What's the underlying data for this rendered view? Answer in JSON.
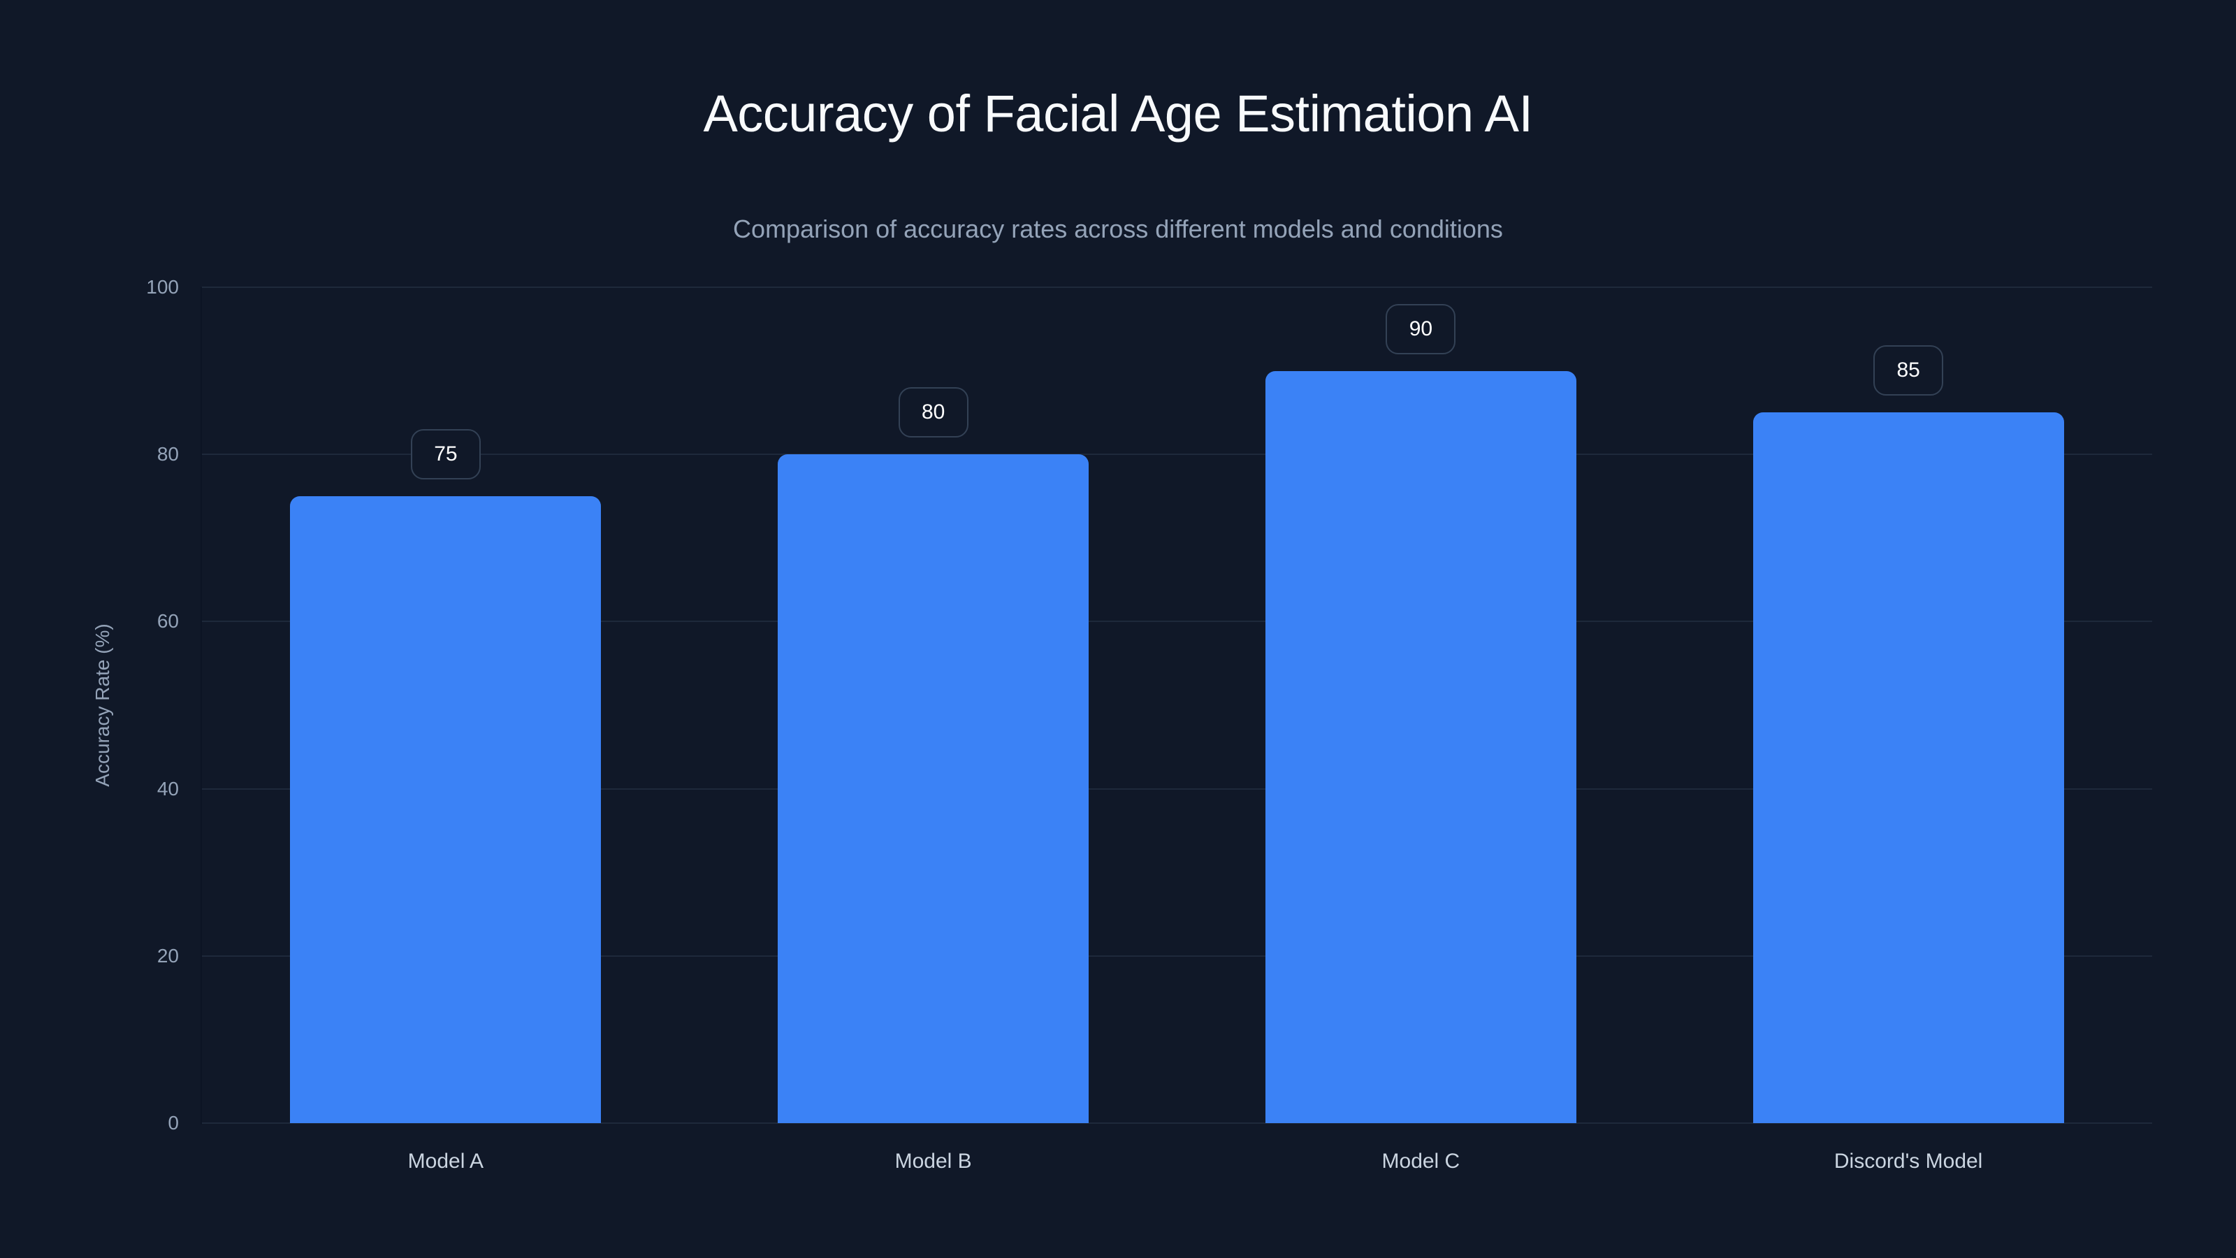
{
  "chart_data": {
    "type": "bar",
    "title": "Accuracy of Facial Age Estimation AI",
    "subtitle": "Comparison of accuracy rates across different models and conditions",
    "categories": [
      "Model A",
      "Model B",
      "Model C",
      "Discord's Model"
    ],
    "values": [
      75,
      80,
      90,
      85
    ],
    "value_labels": [
      "75",
      "80",
      "90",
      "85"
    ],
    "xlabel": "",
    "ylabel": "Accuracy Rate (%)",
    "ylim": [
      0,
      100
    ],
    "yticks": [
      "0",
      "20",
      "40",
      "60",
      "80",
      "100"
    ],
    "grid": true,
    "legend": null,
    "colors": {
      "background": "#101828",
      "bar": "#3b82f6",
      "gridline": "#1e293b",
      "title": "#f8fafc",
      "subtitle": "#94a3b8",
      "tick_label": "#94a3b8",
      "category_label": "#cbd5e1",
      "value_box_border": "#334155"
    }
  }
}
